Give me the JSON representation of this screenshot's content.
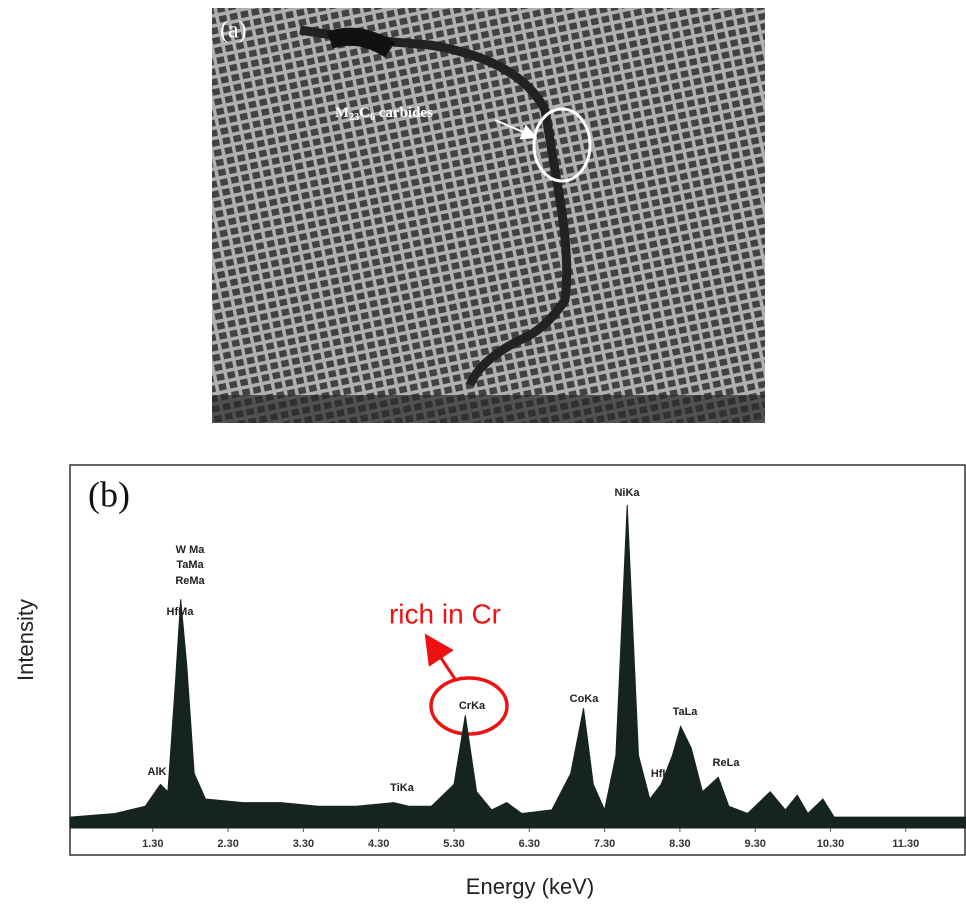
{
  "panel_a": {
    "label": "(a)",
    "annotation": {
      "m": "M",
      "m_sub": "23",
      "c": "C",
      "c_sub": "6",
      "rest": " carbides"
    }
  },
  "chart_data": {
    "type": "area",
    "title": "(b)",
    "xlabel": "Energy (keV)",
    "ylabel": "Intensity",
    "color": "#16241e",
    "x": [
      0.2,
      0.8,
      1.2,
      1.4,
      1.5,
      1.6,
      1.67,
      1.75,
      1.85,
      2.0,
      2.5,
      3.0,
      3.5,
      4.0,
      4.5,
      4.7,
      5.0,
      5.3,
      5.45,
      5.6,
      5.8,
      6.0,
      6.2,
      6.6,
      6.85,
      7.02,
      7.15,
      7.3,
      7.45,
      7.6,
      7.75,
      7.9,
      8.05,
      8.2,
      8.31,
      8.45,
      8.6,
      8.81,
      8.95,
      9.2,
      9.5,
      9.7,
      9.86,
      10.0,
      10.2,
      10.35,
      11.0,
      12.1
    ],
    "values": [
      3,
      4,
      6,
      12,
      10,
      40,
      63,
      45,
      15,
      8,
      7,
      7,
      6,
      6,
      7,
      6,
      6,
      12,
      31,
      10,
      5,
      7,
      4,
      5,
      15,
      33,
      12,
      5,
      20,
      89,
      20,
      8,
      12,
      20,
      28,
      22,
      10,
      14,
      6,
      4,
      10,
      5,
      9,
      4,
      8,
      3,
      3,
      3
    ],
    "xlim": [
      0.2,
      12.1
    ],
    "ylim": [
      0,
      100
    ],
    "xticks": [
      {
        "value": 1.3,
        "label": "1.30"
      },
      {
        "value": 2.3,
        "label": "2.30"
      },
      {
        "value": 3.3,
        "label": "3.30"
      },
      {
        "value": 4.3,
        "label": "4.30"
      },
      {
        "value": 5.3,
        "label": "5.30"
      },
      {
        "value": 6.3,
        "label": "6.30"
      },
      {
        "value": 7.3,
        "label": "7.30"
      },
      {
        "value": 8.3,
        "label": "8.30"
      },
      {
        "value": 9.3,
        "label": "9.30"
      },
      {
        "value": 10.3,
        "label": "10.30"
      },
      {
        "value": 11.3,
        "label": "11.30"
      }
    ],
    "peak_labels": [
      "W Ma",
      "TaMa",
      "ReMa",
      "HfMa",
      "AlK",
      "TiKa",
      "CrKa",
      "CoKa",
      "NiKa",
      "TaLa",
      "HfL",
      "ReLa"
    ],
    "annotation": "rich in Cr"
  }
}
